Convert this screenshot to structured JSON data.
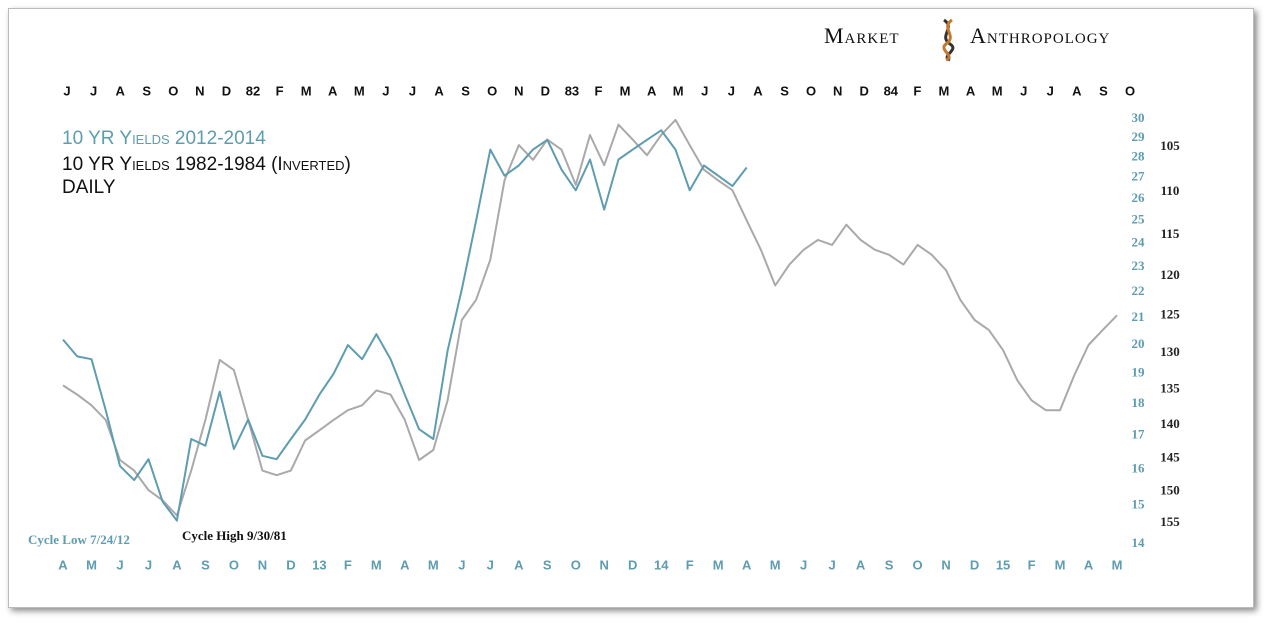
{
  "brand": [
    "Market",
    "Anthropology"
  ],
  "chart_data": {
    "type": "line",
    "subtitle": "DAILY",
    "top_categories": [
      "J",
      "J",
      "A",
      "S",
      "O",
      "N",
      "D",
      "82",
      "F",
      "M",
      "A",
      "M",
      "J",
      "J",
      "A",
      "S",
      "O",
      "N",
      "D",
      "83",
      "F",
      "M",
      "A",
      "M",
      "J",
      "J",
      "A",
      "S",
      "O",
      "N",
      "D",
      "84",
      "F",
      "M",
      "A",
      "M",
      "J",
      "J",
      "A",
      "S",
      "O"
    ],
    "categories": [
      "A",
      null,
      "M",
      null,
      "J",
      null,
      "J",
      null,
      "A",
      null,
      "S",
      null,
      "O",
      null,
      "N",
      null,
      "D",
      null,
      "13",
      null,
      "F",
      null,
      "M",
      null,
      "A",
      null,
      "M",
      null,
      "J",
      null,
      "J",
      null,
      "A",
      null,
      "S",
      null,
      "O",
      null,
      "N",
      null,
      "D",
      null,
      "14",
      null,
      "F",
      null,
      "M",
      null,
      "A",
      null,
      "M",
      null,
      "J",
      null,
      "J",
      null,
      "A",
      null,
      "S",
      null,
      "O",
      null,
      "N",
      null,
      "D",
      null,
      "15",
      null,
      "F",
      null,
      "M",
      null,
      "A",
      null,
      "M"
    ],
    "series": [
      {
        "name": "10 YR Yields 2012-2014",
        "color": "#5e9cb0",
        "axis": "y",
        "values": [
          20.2,
          19.6,
          19.5,
          17.8,
          16.1,
          15.7,
          16.3,
          15.1,
          14.6,
          16.9,
          16.7,
          18.4,
          16.6,
          17.5,
          16.4,
          16.3,
          16.9,
          17.5,
          18.3,
          19.0,
          20.0,
          19.5,
          20.4,
          19.5,
          18.3,
          17.2,
          16.9,
          19.8,
          22.1,
          25.0,
          28.4,
          27.1,
          27.6,
          28.4,
          28.9,
          27.4,
          26.4,
          27.9,
          25.5,
          27.9,
          28.4,
          28.9,
          29.4,
          28.4,
          26.4,
          27.6,
          27.1,
          26.6,
          27.5,
          null,
          null,
          null,
          null,
          null,
          null,
          null,
          null,
          null,
          null,
          null,
          null,
          null,
          null,
          null,
          null,
          null,
          null,
          null,
          null,
          null,
          null,
          null,
          null,
          null,
          null
        ]
      },
      {
        "name": "10 YR Yields 1982-1984 (Inverted)",
        "color": "#a9a9a9",
        "axis": "y2",
        "values": [
          134.4,
          135.7,
          137.2,
          139.3,
          145.2,
          146.8,
          149.8,
          151.4,
          153.8,
          146.8,
          139.3,
          130.9,
          132.3,
          139.3,
          146.8,
          147.5,
          146.8,
          142.3,
          140.8,
          139.3,
          137.9,
          137.2,
          135.1,
          135.7,
          139.3,
          145.2,
          143.7,
          136.5,
          125.6,
          123.0,
          118.0,
          108.7,
          104.8,
          106.4,
          104.2,
          105.3,
          109.2,
          103.7,
          107.0,
          102.6,
          104.2,
          105.9,
          103.7,
          102.1,
          104.8,
          107.5,
          108.7,
          109.8,
          113.3,
          116.8,
          121.2,
          118.6,
          116.8,
          115.6,
          116.2,
          113.8,
          115.6,
          116.8,
          117.4,
          118.6,
          116.2,
          117.4,
          119.3,
          123.0,
          125.6,
          126.9,
          129.6,
          133.7,
          136.5,
          137.9,
          137.9,
          133.0,
          128.9,
          126.9,
          125.0
        ]
      }
    ],
    "ylim": [
      14,
      30
    ],
    "yticks": [
      14,
      15,
      16,
      17,
      18,
      19,
      20,
      21,
      22,
      23,
      24,
      25,
      26,
      27,
      28,
      29,
      30
    ],
    "y_log": true,
    "y2lim": [
      102,
      158.4
    ],
    "y2ticks": [
      105,
      110,
      115,
      120,
      125,
      130,
      135,
      140,
      145,
      150,
      155
    ],
    "y2_log": true,
    "y2_inverted": true,
    "annotations": [
      "Cycle Low 7/24/12",
      "Cycle High 9/30/81"
    ]
  }
}
